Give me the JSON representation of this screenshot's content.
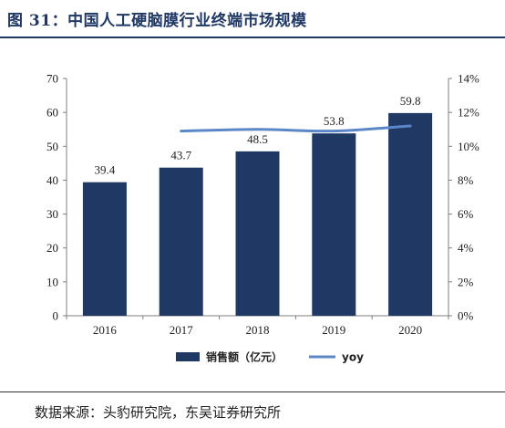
{
  "figure": {
    "title": "图 31：中国人工硬脑膜行业终端市场规模",
    "source": "数据来源：头豹研究院，东吴证券研究所"
  },
  "colors": {
    "bar": "#1f3864",
    "line": "#5b86c8",
    "title": "#1f3864"
  },
  "chart_data": {
    "type": "bar",
    "categories": [
      "2016",
      "2017",
      "2018",
      "2019",
      "2020"
    ],
    "series": [
      {
        "name": "销售额（亿元）",
        "type": "bar",
        "axis": "left",
        "values": [
          39.4,
          43.7,
          48.5,
          53.8,
          59.8
        ],
        "labels": [
          "39.4",
          "43.7",
          "48.5",
          "53.8",
          "59.8"
        ]
      },
      {
        "name": "yoy",
        "type": "line",
        "axis": "right",
        "values": [
          null,
          0.109,
          0.11,
          0.109,
          0.112
        ]
      }
    ],
    "ylim": [
      0,
      70
    ],
    "y_ticks": [
      0,
      10,
      20,
      30,
      40,
      50,
      60,
      70
    ],
    "y_tick_labels": [
      "0",
      "10",
      "20",
      "30",
      "40",
      "50",
      "60",
      "70"
    ],
    "y2lim": [
      0,
      0.14
    ],
    "y2_ticks": [
      0,
      0.02,
      0.04,
      0.06,
      0.08,
      0.1,
      0.12,
      0.14
    ],
    "y2_tick_labels": [
      "0%",
      "2%",
      "4%",
      "6%",
      "8%",
      "10%",
      "12%",
      "14%"
    ],
    "legend": "bottom",
    "grid": false
  }
}
